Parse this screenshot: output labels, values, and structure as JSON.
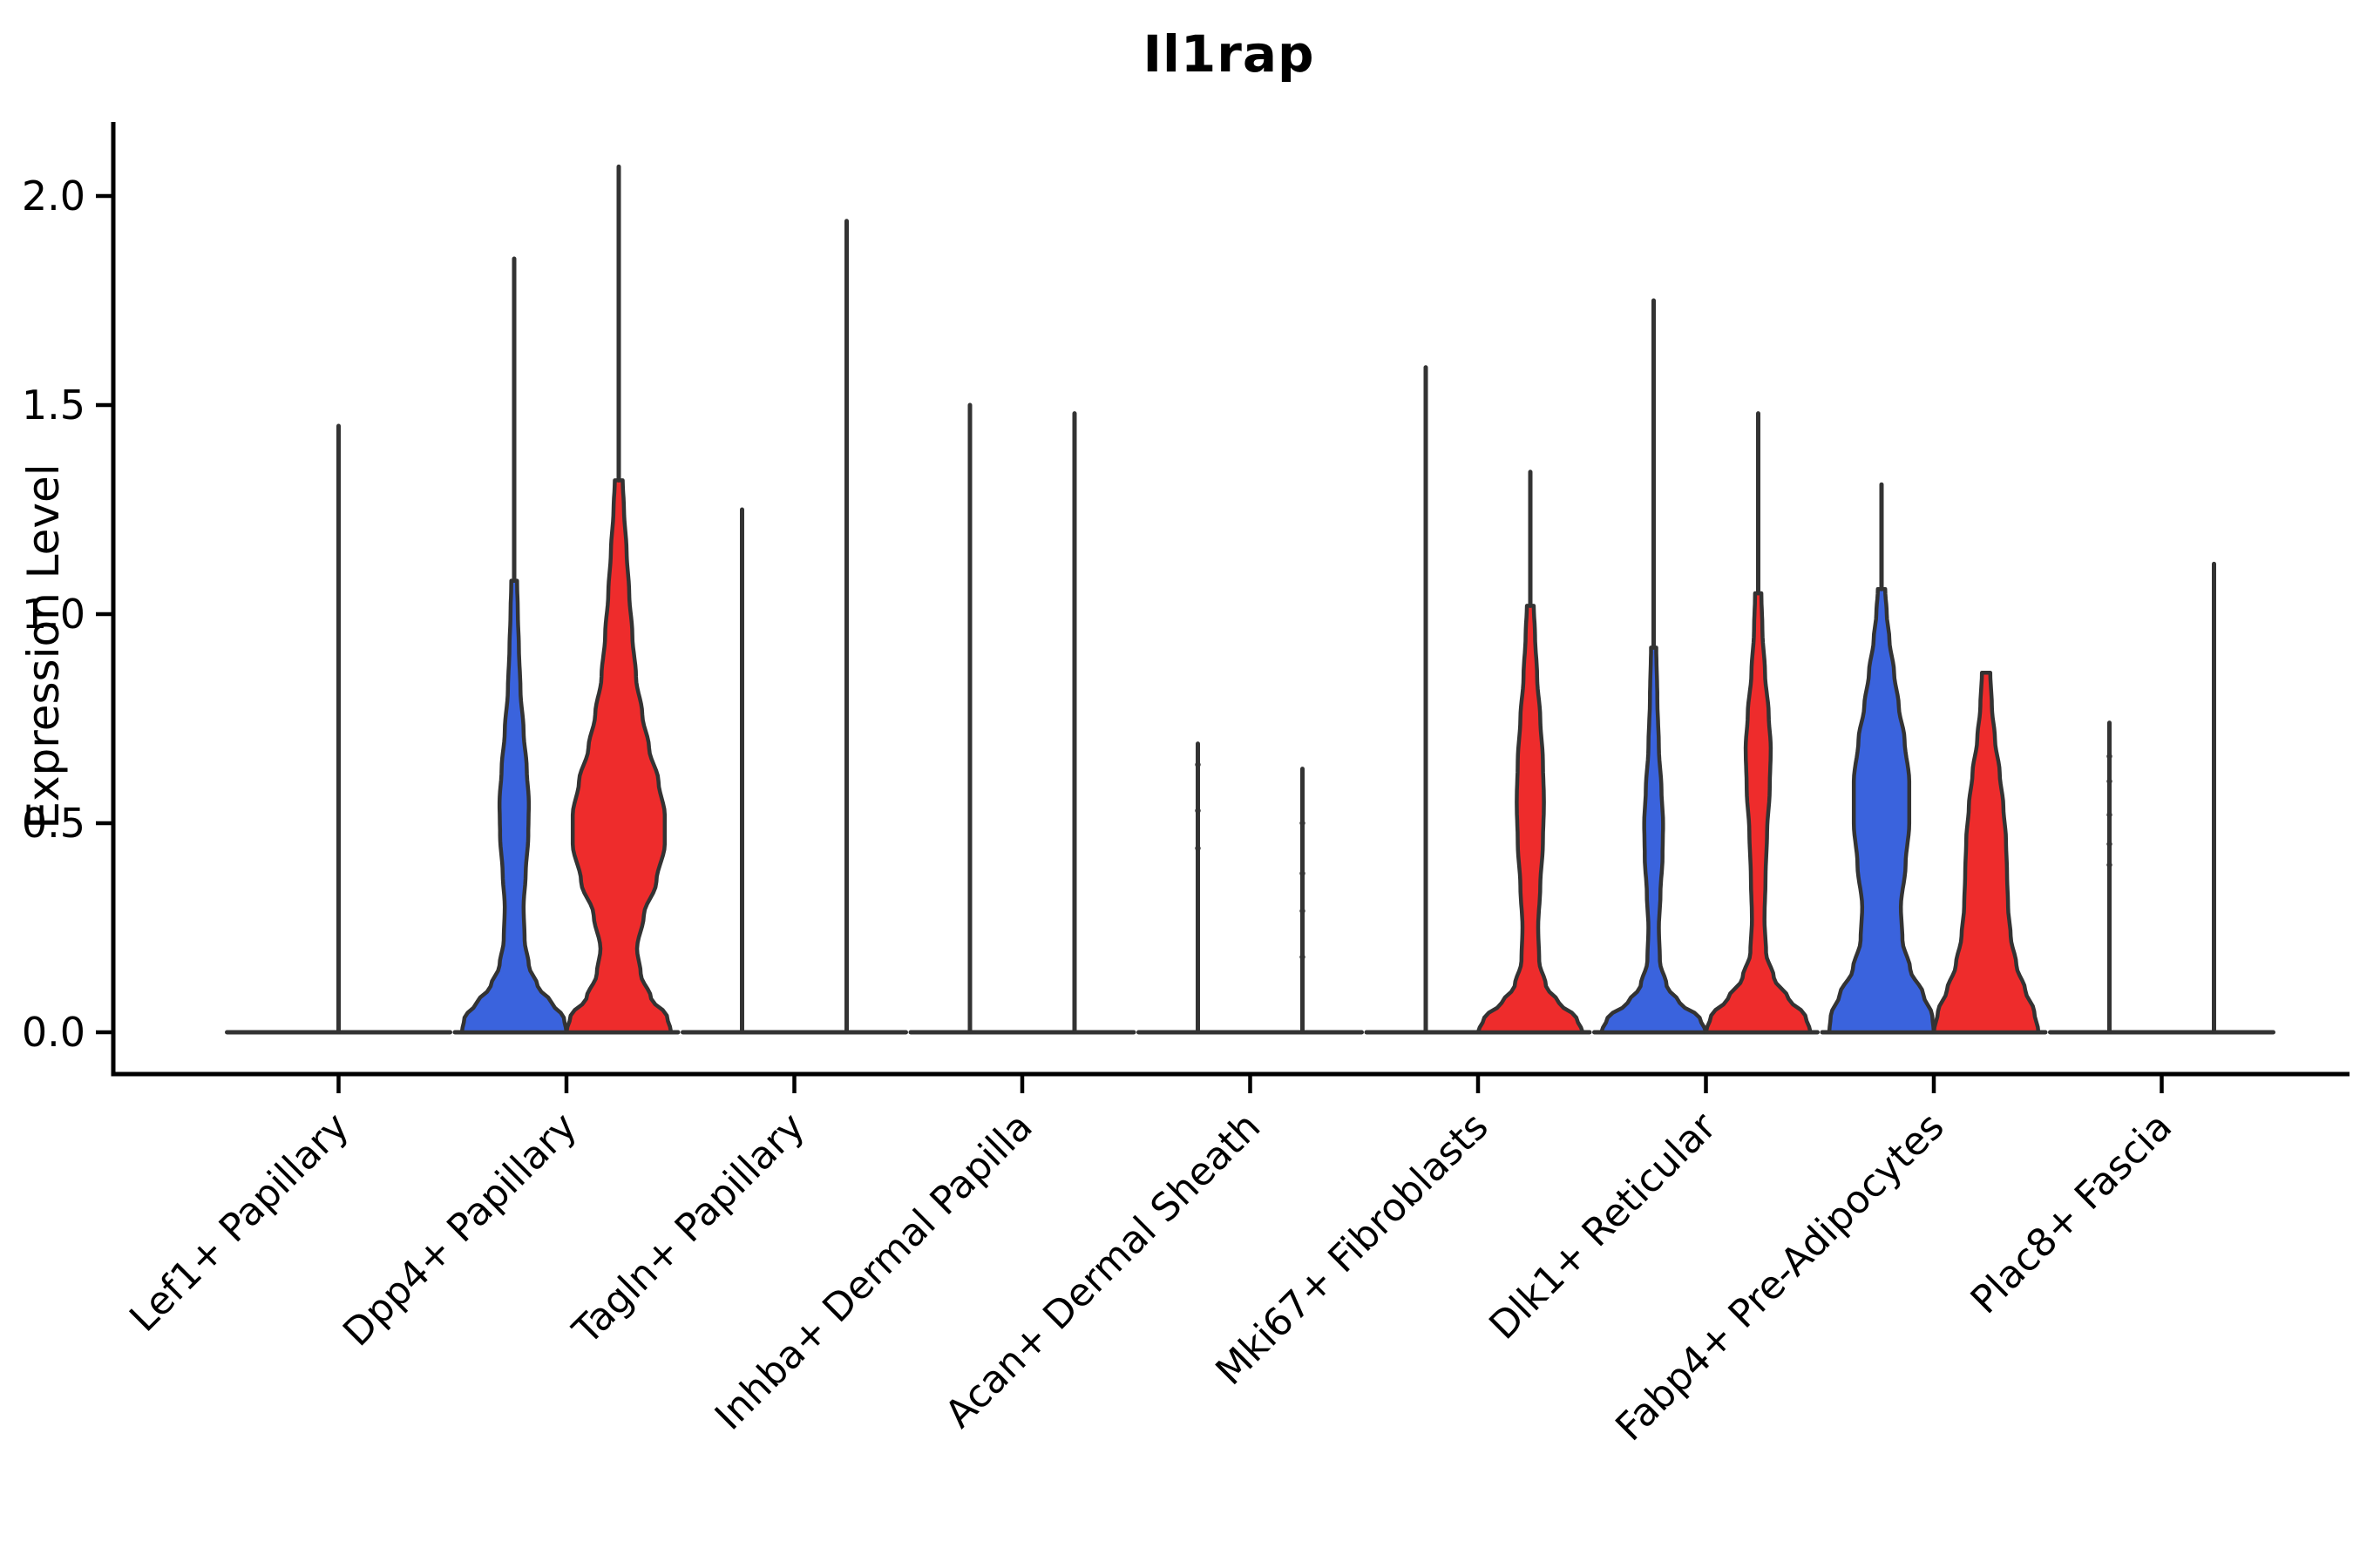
{
  "title": "Il1rap",
  "y_axis": {
    "label": "Expression Level",
    "tick_values": [
      0.0,
      0.5,
      1.0,
      1.5,
      2.0
    ],
    "tick_labels": [
      "0.0",
      "0.5",
      "1.0",
      "1.5",
      "2.0"
    ]
  },
  "colors": {
    "blue": "#3A63DD",
    "red": "#EE2C2C",
    "outline": "#333333",
    "axis": "#000000",
    "dot": "#333333",
    "background": "#FFFFFF"
  },
  "chart_data": {
    "type": "violin",
    "subtype": "grouped-split-violin",
    "title": "Il1rap",
    "xlabel": "",
    "ylabel": "Expression Level",
    "ylim": [
      -0.1,
      2.17
    ],
    "yticks": [
      0.0,
      0.5,
      1.0,
      1.5,
      2.0
    ],
    "grid": false,
    "legend": "none",
    "categories": [
      "Lef1+ Papillary",
      "Dpp4+ Papillary",
      "Tagln+ Papillary",
      "Inhba+ Dermal Papilla",
      "Acan+ Dermal Sheath",
      "Mki67+ Fibroblasts",
      "Dlk1+ Reticular",
      "Fabp4+ Pre-Adipocytes",
      "Plac8+ Fascia"
    ],
    "groups": [
      {
        "key": "blue",
        "position": "left"
      },
      {
        "key": "red",
        "position": "right"
      }
    ],
    "violins": [
      {
        "category": "Lef1+ Papillary",
        "items": [
          {
            "side": "center",
            "color": "none",
            "max": 1.45,
            "spike_from": 0,
            "body": null,
            "dots": []
          }
        ]
      },
      {
        "category": "Dpp4+ Papillary",
        "items": [
          {
            "side": "left",
            "color": "blue",
            "max": 1.85,
            "spike_from": 1.08,
            "dots": [],
            "body": [
              [
                0,
                1.0
              ],
              [
                0.035,
                0.95
              ],
              [
                0.07,
                0.72
              ],
              [
                0.11,
                0.45
              ],
              [
                0.16,
                0.28
              ],
              [
                0.22,
                0.2
              ],
              [
                0.3,
                0.18
              ],
              [
                0.38,
                0.22
              ],
              [
                0.47,
                0.27
              ],
              [
                0.55,
                0.28
              ],
              [
                0.63,
                0.24
              ],
              [
                0.72,
                0.18
              ],
              [
                0.82,
                0.12
              ],
              [
                0.92,
                0.09
              ],
              [
                1.0,
                0.07
              ],
              [
                1.08,
                0.055
              ]
            ]
          },
          {
            "side": "right",
            "color": "red",
            "max": 2.07,
            "spike_from": 1.32,
            "dots": [],
            "body": [
              [
                0,
                1.0
              ],
              [
                0.04,
                0.92
              ],
              [
                0.08,
                0.62
              ],
              [
                0.14,
                0.42
              ],
              [
                0.2,
                0.35
              ],
              [
                0.28,
                0.48
              ],
              [
                0.36,
                0.72
              ],
              [
                0.45,
                0.88
              ],
              [
                0.52,
                0.88
              ],
              [
                0.6,
                0.76
              ],
              [
                0.68,
                0.58
              ],
              [
                0.76,
                0.45
              ],
              [
                0.85,
                0.33
              ],
              [
                0.95,
                0.26
              ],
              [
                1.05,
                0.2
              ],
              [
                1.15,
                0.15
              ],
              [
                1.25,
                0.1
              ],
              [
                1.32,
                0.075
              ]
            ]
          }
        ]
      },
      {
        "category": "Tagln+ Papillary",
        "items": [
          {
            "side": "left",
            "color": "none",
            "max": 1.25,
            "spike_from": 0,
            "body": null,
            "dots": []
          },
          {
            "side": "right",
            "color": "none",
            "max": 1.94,
            "spike_from": 0,
            "body": null,
            "dots": []
          }
        ]
      },
      {
        "category": "Inhba+ Dermal Papilla",
        "items": [
          {
            "side": "left",
            "color": "none",
            "max": 1.5,
            "spike_from": 0,
            "body": null,
            "dots": []
          },
          {
            "side": "right",
            "color": "none",
            "max": 1.48,
            "spike_from": 0,
            "body": null,
            "dots": []
          }
        ]
      },
      {
        "category": "Acan+ Dermal Sheath",
        "items": [
          {
            "side": "left",
            "color": "none",
            "max": 0.69,
            "spike_from": 0,
            "body": null,
            "dots": [
              0.64,
              0.53,
              0.44
            ]
          },
          {
            "side": "right",
            "color": "none",
            "max": 0.63,
            "spike_from": 0,
            "body": null,
            "dots": [
              0.5,
              0.38,
              0.29,
              0.18
            ]
          }
        ]
      },
      {
        "category": "Mki67+ Fibroblasts",
        "items": [
          {
            "side": "left",
            "color": "none",
            "max": 1.59,
            "spike_from": 0,
            "body": null,
            "dots": []
          },
          {
            "side": "right",
            "color": "red",
            "max": 1.34,
            "spike_from": 1.02,
            "dots": [],
            "body": [
              [
                0,
                1.0
              ],
              [
                0.035,
                0.88
              ],
              [
                0.07,
                0.55
              ],
              [
                0.11,
                0.3
              ],
              [
                0.17,
                0.17
              ],
              [
                0.25,
                0.15
              ],
              [
                0.35,
                0.19
              ],
              [
                0.45,
                0.24
              ],
              [
                0.55,
                0.26
              ],
              [
                0.65,
                0.24
              ],
              [
                0.75,
                0.19
              ],
              [
                0.85,
                0.13
              ],
              [
                0.95,
                0.09
              ],
              [
                1.02,
                0.065
              ]
            ]
          }
        ]
      },
      {
        "category": "Dlk1+ Reticular",
        "items": [
          {
            "side": "left",
            "color": "blue",
            "max": 1.75,
            "spike_from": 0.92,
            "dots": [],
            "body": [
              [
                0,
                1.0
              ],
              [
                0.035,
                0.88
              ],
              [
                0.07,
                0.5
              ],
              [
                0.11,
                0.25
              ],
              [
                0.17,
                0.12
              ],
              [
                0.25,
                0.1
              ],
              [
                0.33,
                0.13
              ],
              [
                0.42,
                0.17
              ],
              [
                0.5,
                0.18
              ],
              [
                0.58,
                0.15
              ],
              [
                0.68,
                0.1
              ],
              [
                0.8,
                0.07
              ],
              [
                0.92,
                0.05
              ]
            ]
          },
          {
            "side": "right",
            "color": "red",
            "max": 1.48,
            "spike_from": 1.05,
            "dots": [],
            "body": [
              [
                0,
                1.0
              ],
              [
                0.04,
                0.9
              ],
              [
                0.08,
                0.58
              ],
              [
                0.13,
                0.3
              ],
              [
                0.19,
                0.15
              ],
              [
                0.27,
                0.12
              ],
              [
                0.37,
                0.14
              ],
              [
                0.48,
                0.17
              ],
              [
                0.58,
                0.22
              ],
              [
                0.68,
                0.24
              ],
              [
                0.76,
                0.2
              ],
              [
                0.86,
                0.13
              ],
              [
                0.96,
                0.08
              ],
              [
                1.05,
                0.06
              ]
            ]
          }
        ]
      },
      {
        "category": "Fabp4+ Pre-Adipocytes",
        "items": [
          {
            "side": "left",
            "color": "blue",
            "max": 1.31,
            "spike_from": 1.06,
            "dots": [],
            "body": [
              [
                0,
                1.0
              ],
              [
                0.04,
                0.97
              ],
              [
                0.09,
                0.8
              ],
              [
                0.15,
                0.55
              ],
              [
                0.22,
                0.4
              ],
              [
                0.3,
                0.37
              ],
              [
                0.4,
                0.46
              ],
              [
                0.5,
                0.53
              ],
              [
                0.6,
                0.53
              ],
              [
                0.7,
                0.44
              ],
              [
                0.78,
                0.33
              ],
              [
                0.86,
                0.24
              ],
              [
                0.94,
                0.15
              ],
              [
                1.0,
                0.1
              ],
              [
                1.06,
                0.07
              ]
            ]
          },
          {
            "side": "right",
            "color": "red",
            "max": 0.86,
            "spike_from": 0.86,
            "dots": [],
            "body": [
              [
                0,
                1.0
              ],
              [
                0.05,
                0.92
              ],
              [
                0.1,
                0.75
              ],
              [
                0.16,
                0.58
              ],
              [
                0.23,
                0.47
              ],
              [
                0.3,
                0.42
              ],
              [
                0.38,
                0.4
              ],
              [
                0.46,
                0.38
              ],
              [
                0.54,
                0.33
              ],
              [
                0.62,
                0.26
              ],
              [
                0.7,
                0.17
              ],
              [
                0.78,
                0.11
              ],
              [
                0.86,
                0.08
              ]
            ]
          }
        ]
      },
      {
        "category": "Plac8+ Fascia",
        "items": [
          {
            "side": "left",
            "color": "none",
            "max": 0.74,
            "spike_from": 0,
            "body": null,
            "dots": [
              0.66,
              0.6,
              0.52,
              0.45,
              0.4
            ]
          },
          {
            "side": "right",
            "color": "none",
            "max": 1.12,
            "spike_from": 0,
            "body": null,
            "dots": []
          }
        ]
      }
    ]
  }
}
